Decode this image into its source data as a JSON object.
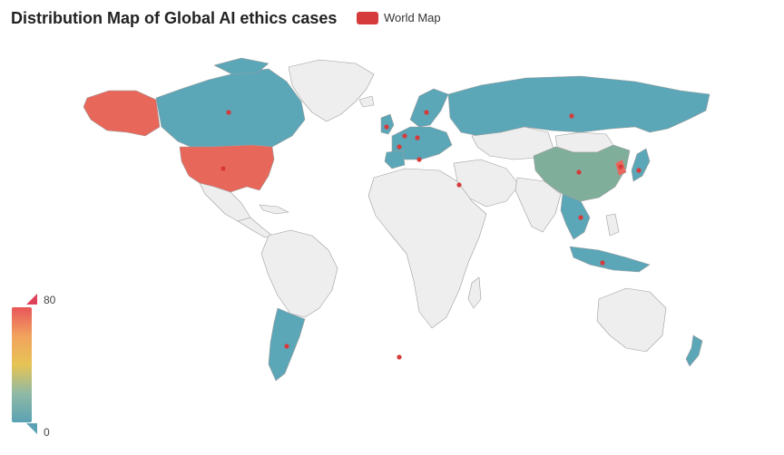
{
  "title": "Distribution Map of Global AI ethics cases",
  "legend": {
    "label": "World Map",
    "color": "#d63b3b"
  },
  "visual_map": {
    "max": "80",
    "min": "0",
    "colors": [
      "#e8565a",
      "#f2a35e",
      "#e6c455",
      "#8fb9a5",
      "#5aa2b3"
    ]
  },
  "colors": {
    "land": "#eeeeee",
    "border": "#9e9e9e",
    "high": "#e8675b",
    "mid": "#7fae9a",
    "low": "#5ba6b7",
    "marker": "#d63b3b"
  }
}
